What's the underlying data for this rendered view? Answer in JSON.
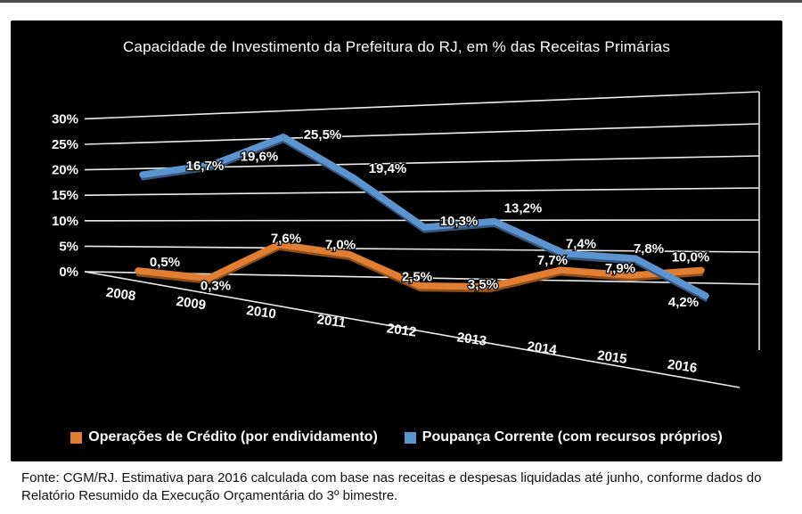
{
  "chart_data": {
    "type": "line",
    "style": "3d-perspective",
    "title": "Capacidade de Investimento da Prefeitura do RJ, em % das Receitas Primárias",
    "categories": [
      "2008",
      "2009",
      "2010",
      "2011",
      "2012",
      "2013",
      "2014",
      "2015",
      "2016"
    ],
    "series": [
      {
        "name": "Operações de Crédito (por endividamento)",
        "color": "#E07E33",
        "edge_color": "#8F4E16",
        "values": [
          0.5,
          0.3,
          7.6,
          7.0,
          2.5,
          3.5,
          7.7,
          7.9,
          10.0
        ],
        "labels": [
          "0,5%",
          "0,3%",
          "7,6%",
          "7,0%",
          "2,5%",
          "3,5%",
          "7,7%",
          "7,9%",
          "10,0%"
        ]
      },
      {
        "name": "Poupança Corrente (com recursos próprios)",
        "color": "#5B94CE",
        "edge_color": "#36567F",
        "values": [
          16.7,
          19.6,
          25.5,
          19.4,
          10.3,
          13.2,
          7.4,
          7.8,
          4.2
        ],
        "labels": [
          "16,7%",
          "19,6%",
          "25,5%",
          "19,4%",
          "10,3%",
          "13,2%",
          "7,4%",
          "7,8%",
          "4,2%"
        ]
      }
    ],
    "ylim": [
      0,
      30
    ],
    "y_tick_labels": [
      "0%",
      "5%",
      "10%",
      "15%",
      "20%",
      "25%",
      "30%"
    ],
    "grid": true,
    "legend_position": "bottom",
    "background": "#000000",
    "gridline_color": "#ECECEC",
    "text_color": "#FFFFFF"
  },
  "footer": {
    "text": "Fonte: CGM/RJ. Estimativa para 2016 calculada com base nas receitas e despesas liquidadas até junho, conforme dados do Relatório Resumido da Execução Orçamentária do 3º bimestre."
  }
}
